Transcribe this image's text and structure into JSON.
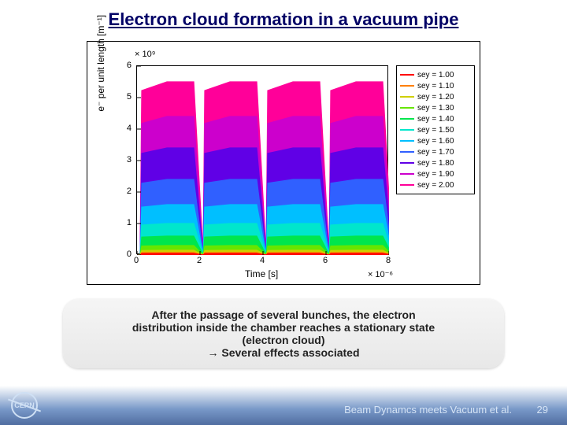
{
  "title": "Electron cloud formation in a vacuum pipe",
  "chart": {
    "type": "line-area",
    "y_exponent": "× 10⁹",
    "x_exponent": "× 10⁻⁶",
    "ylabel": "e⁻ per unit length [m⁻¹]",
    "xlabel": "Time [s]",
    "xlim": [
      0,
      8
    ],
    "ylim": [
      0,
      6
    ],
    "xticks": [
      0,
      2,
      4,
      6,
      8
    ],
    "yticks": [
      0,
      1,
      2,
      3,
      4,
      5,
      6
    ],
    "background_color": "#ffffff",
    "axis_color": "#000000",
    "tick_fontsize": 11,
    "label_fontsize": 12,
    "pulse_starts": [
      0.1,
      2.1,
      4.1,
      6.1
    ],
    "pulse_width": 1.7,
    "decay_width": 0.3,
    "series": [
      {
        "label": "sey = 1.00",
        "color": "#ff0000",
        "peak": 0.05
      },
      {
        "label": "sey = 1.10",
        "color": "#ff7f00",
        "peak": 0.08
      },
      {
        "label": "sey = 1.20",
        "color": "#cfcf00",
        "peak": 0.15
      },
      {
        "label": "sey = 1.30",
        "color": "#66e600",
        "peak": 0.3
      },
      {
        "label": "sey = 1.40",
        "color": "#00e64d",
        "peak": 0.6
      },
      {
        "label": "sey = 1.50",
        "color": "#00e6cc",
        "peak": 1.0
      },
      {
        "label": "sey = 1.60",
        "color": "#00bfff",
        "peak": 1.6
      },
      {
        "label": "sey = 1.70",
        "color": "#3060ff",
        "peak": 2.4
      },
      {
        "label": "sey = 1.80",
        "color": "#6000e6",
        "peak": 3.4
      },
      {
        "label": "sey = 1.90",
        "color": "#cc00cc",
        "peak": 4.4
      },
      {
        "label": "sey = 2.00",
        "color": "#ff0099",
        "peak": 5.5
      }
    ],
    "line_width": 1.2
  },
  "bubble": {
    "line1": "After the passage of several bunches, the electron",
    "line2": "distribution inside the chamber reaches a stationary state",
    "line3": "(electron cloud)",
    "line4": "→ Several effects associated"
  },
  "footer": {
    "text": "Beam Dynamcs meets Vacuum et al.",
    "page": "29",
    "logo": "CERN"
  }
}
